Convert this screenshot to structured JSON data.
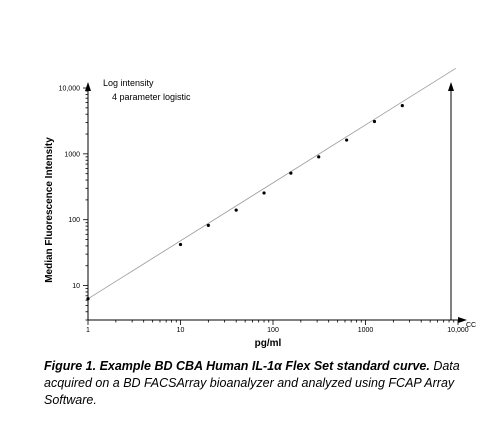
{
  "chart_data": {
    "type": "scatter",
    "title": "",
    "xlabel": "pg/ml",
    "ylabel": "Median Fluorescence Intensity",
    "x_scale": "log",
    "y_scale": "log",
    "xlim": [
      1,
      10000
    ],
    "ylim": [
      3,
      10000
    ],
    "x_ticks": [
      "1",
      "10",
      "100",
      "1000",
      "10,000"
    ],
    "y_ticks": [
      "10",
      "100",
      "1000",
      "10,000"
    ],
    "x_axis_end_label": "CC",
    "annotations": [
      "Log intensity",
      "4 parameter logistic"
    ],
    "grid": false,
    "fit": {
      "name": "4 parameter logistic",
      "x": [
        1,
        3500
      ],
      "y": [
        6.3,
        8000
      ]
    },
    "points": [
      {
        "x": 10,
        "y": 42
      },
      {
        "x": 20,
        "y": 82
      },
      {
        "x": 40,
        "y": 140
      },
      {
        "x": 80,
        "y": 255
      },
      {
        "x": 156,
        "y": 510
      },
      {
        "x": 312,
        "y": 900
      },
      {
        "x": 625,
        "y": 1620
      },
      {
        "x": 1250,
        "y": 3100
      },
      {
        "x": 2500,
        "y": 5400
      }
    ]
  },
  "caption": {
    "bold": "Figure 1. Example BD CBA Human IL-1α Flex Set standard curve.",
    "rest": " Data acquired on a BD FACSArray bioanalyzer and analyzed using FCAP Array Software."
  }
}
